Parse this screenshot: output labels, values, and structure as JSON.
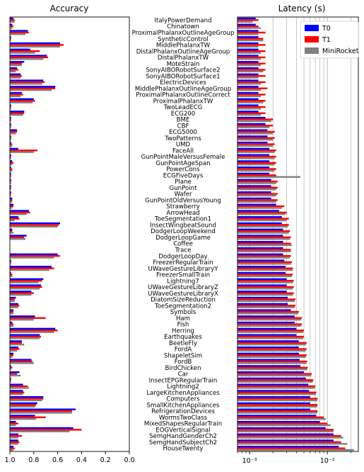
{
  "chart_data": [
    {
      "type": "bar",
      "orientation": "horizontal",
      "title": "Accuracy",
      "xaxis_inverted": true,
      "xlim": [
        1.0,
        0.0
      ],
      "xticks": [
        1.0,
        0.8,
        0.6,
        0.4,
        0.2,
        0.0
      ],
      "xtick_labels": [
        "1.0",
        "0.8",
        "0.6",
        "0.4",
        "0.2",
        "0.0"
      ],
      "categories": [
        "ItalyPowerDemand",
        "Chinatown",
        "ProximalPhalanxOutlineAgeGroup",
        "SyntheticControl",
        "MiddlePhalanxTW",
        "DistalPhalanxOutlineAgeGroup",
        "DistalPhalanxTW",
        "MoteStrain",
        "SonyAIBORobotSurface2",
        "SonyAIBORobotSurface1",
        "ElectricDevices",
        "MiddlePhalanxOutlineAgeGroup",
        "ProximalPhalanxOutlineCorrect",
        "ProximalPhalanxTW",
        "TwoLeadECG",
        "ECG200",
        "BME",
        "CBF",
        "ECG5000",
        "TwoPatterns",
        "UMD",
        "FaceAll",
        "GunPointMaleVersusFemale",
        "GunPointAgeSpan",
        "PowerCons",
        "ECGFiveDays",
        "Plane",
        "GunPoint",
        "Wafer",
        "GunPointOldVersusYoung",
        "Strawberry",
        "ArrowHead",
        "ToeSegmentation1",
        "InsectWingbeatSound",
        "DodgerLoopWeekend",
        "DodgerLoopGame",
        "Coffee",
        "Trace",
        "DodgerLoopDay",
        "FreezerRegularTrain",
        "UWaveGestureLibraryY",
        "FreezerSmallTrain",
        "Lightning7",
        "UWaveGestureLibraryZ",
        "UWaveGestureLibraryX",
        "DiatomSizeReduction",
        "ToeSegmentation2",
        "Symbols",
        "Ham",
        "Fish",
        "Herring",
        "Earthquakes",
        "BeetleFly",
        "FordA",
        "ShapeletSim",
        "FordB",
        "BirdChicken",
        "Car",
        "InsectEPGRegularTrain",
        "Lightning2",
        "LargeKitchenAppliances",
        "Computers",
        "SmallKitchenAppliances",
        "RefrigerationDevices",
        "WormsTwoClass",
        "MixedShapesRegularTrain",
        "EOGVerticalSignal",
        "SemgHandGenderCh2",
        "SemgHandSubjectCh2",
        "HouseTwenty"
      ],
      "series": [
        {
          "name": "T0",
          "color": "#0000ff",
          "values": [
            0.97,
            0.98,
            0.85,
            0.99,
            0.58,
            0.83,
            0.69,
            0.88,
            0.94,
            0.91,
            0.72,
            0.62,
            0.9,
            0.8,
            0.99,
            0.88,
            0.99,
            0.99,
            0.94,
            0.99,
            0.99,
            0.93,
            0.99,
            0.98,
            0.99,
            0.99,
            0.99,
            0.99,
            0.99,
            0.98,
            0.97,
            0.84,
            0.93,
            0.58,
            0.98,
            0.86,
            1.0,
            1.0,
            0.6,
            0.99,
            0.65,
            0.99,
            0.72,
            0.74,
            0.82,
            0.95,
            0.93,
            0.97,
            0.79,
            0.98,
            0.62,
            0.75,
            0.9,
            0.93,
            0.97,
            0.82,
            0.99,
            0.92,
            0.99,
            0.89,
            0.89,
            0.72,
            0.77,
            0.45,
            0.79,
            0.95,
            0.47,
            0.93,
            0.93,
            0.97
          ]
        },
        {
          "name": "T1",
          "color": "#ff0000",
          "values": [
            0.96,
            0.97,
            0.84,
            0.99,
            0.55,
            0.75,
            0.68,
            0.9,
            0.93,
            0.9,
            0.71,
            0.62,
            0.89,
            0.79,
            0.99,
            0.88,
            0.99,
            0.99,
            0.94,
            0.99,
            0.98,
            0.77,
            0.99,
            0.97,
            0.98,
            0.99,
            0.99,
            0.99,
            0.99,
            0.98,
            0.97,
            0.83,
            0.92,
            0.59,
            0.98,
            0.88,
            1.0,
            1.0,
            0.58,
            0.99,
            0.63,
            0.98,
            0.73,
            0.73,
            0.8,
            0.96,
            0.92,
            0.97,
            0.7,
            0.97,
            0.6,
            0.74,
            0.9,
            0.92,
            0.97,
            0.81,
            0.98,
            0.94,
            0.99,
            0.85,
            0.88,
            0.72,
            0.78,
            0.48,
            0.7,
            0.93,
            0.4,
            0.9,
            0.92,
            0.96
          ]
        },
        {
          "name": "MiniRocket",
          "color": "#808080",
          "values": [
            0.96,
            0.98,
            0.87,
            0.99,
            0.58,
            0.79,
            0.72,
            0.9,
            0.95,
            0.91,
            0.73,
            0.65,
            0.91,
            0.81,
            0.99,
            0.89,
            0.99,
            0.99,
            0.95,
            0.99,
            0.98,
            0.8,
            0.99,
            0.98,
            0.98,
            0.99,
            0.99,
            0.99,
            0.99,
            0.98,
            0.98,
            0.86,
            0.96,
            0.6,
            0.97,
            0.87,
            1.0,
            1.0,
            0.63,
            0.99,
            0.67,
            0.98,
            0.76,
            0.75,
            0.82,
            0.96,
            0.93,
            0.97,
            0.8,
            0.97,
            0.63,
            0.75,
            0.88,
            0.94,
            0.98,
            0.8,
            0.99,
            0.91,
            0.99,
            0.84,
            0.89,
            0.73,
            0.79,
            0.48,
            0.78,
            0.95,
            0.5,
            0.93,
            0.93,
            0.97
          ]
        }
      ]
    },
    {
      "type": "bar",
      "orientation": "horizontal",
      "title": "Latency (s)",
      "xscale": "log",
      "xlim": [
        0.0007,
        0.025
      ],
      "xticks_major": [
        0.001,
        0.01
      ],
      "xtick_labels": [
        "10⁻³",
        "10⁻²"
      ],
      "grid": "vertical",
      "legend_position": "top-right",
      "categories": [
        "ItalyPowerDemand",
        "Chinatown",
        "ProximalPhalanxOutlineAgeGroup",
        "SyntheticControl",
        "MiddlePhalanxTW",
        "DistalPhalanxOutlineAgeGroup",
        "DistalPhalanxTW",
        "MoteStrain",
        "SonyAIBORobotSurface2",
        "SonyAIBORobotSurface1",
        "ElectricDevices",
        "MiddlePhalanxOutlineAgeGroup",
        "ProximalPhalanxOutlineCorrect",
        "ProximalPhalanxTW",
        "TwoLeadECG",
        "ECG200",
        "BME",
        "CBF",
        "ECG5000",
        "TwoPatterns",
        "UMD",
        "FaceAll",
        "GunPointMaleVersusFemale",
        "GunPointAgeSpan",
        "PowerCons",
        "ECGFiveDays",
        "Plane",
        "GunPoint",
        "Wafer",
        "GunPointOldVersusYoung",
        "Strawberry",
        "ArrowHead",
        "ToeSegmentation1",
        "InsectWingbeatSound",
        "DodgerLoopWeekend",
        "DodgerLoopGame",
        "Coffee",
        "Trace",
        "DodgerLoopDay",
        "FreezerRegularTrain",
        "UWaveGestureLibraryY",
        "FreezerSmallTrain",
        "Lightning7",
        "UWaveGestureLibraryZ",
        "UWaveGestureLibraryX",
        "DiatomSizeReduction",
        "ToeSegmentation2",
        "Symbols",
        "Ham",
        "Fish",
        "Herring",
        "Earthquakes",
        "BeetleFly",
        "FordA",
        "ShapeletSim",
        "FordB",
        "BirdChicken",
        "Car",
        "InsectEPGRegularTrain",
        "Lightning2",
        "LargeKitchenAppliances",
        "Computers",
        "SmallKitchenAppliances",
        "RefrigerationDevices",
        "WormsTwoClass",
        "MixedShapesRegularTrain",
        "EOGVerticalSignal",
        "SemgHandGenderCh2",
        "SemgHandSubjectCh2",
        "HouseTwenty"
      ],
      "series": [
        {
          "name": "T0",
          "color": "#0000ff",
          "values": [
            0.0012,
            0.0012,
            0.0013,
            0.0013,
            0.0013,
            0.0013,
            0.0013,
            0.0013,
            0.0013,
            0.0013,
            0.0013,
            0.0013,
            0.0013,
            0.0013,
            0.0013,
            0.0013,
            0.0016,
            0.0016,
            0.0017,
            0.0017,
            0.0017,
            0.0018,
            0.0018,
            0.0018,
            0.0018,
            0.0018,
            0.0019,
            0.0019,
            0.0019,
            0.0019,
            0.0022,
            0.0024,
            0.0026,
            0.0026,
            0.0027,
            0.0027,
            0.0027,
            0.0027,
            0.0027,
            0.0028,
            0.0029,
            0.0029,
            0.003,
            0.003,
            0.003,
            0.0031,
            0.0031,
            0.0034,
            0.0038,
            0.0038,
            0.004,
            0.004,
            0.0043,
            0.0043,
            0.0043,
            0.0044,
            0.0045,
            0.005,
            0.0053,
            0.0057,
            0.0058,
            0.006,
            0.006,
            0.006,
            0.0072,
            0.008,
            0.0095,
            0.012,
            0.012,
            0.014
          ]
        },
        {
          "name": "T1",
          "color": "#ff0000",
          "values": [
            0.0013,
            0.0013,
            0.0016,
            0.0015,
            0.0016,
            0.0016,
            0.0016,
            0.0016,
            0.0016,
            0.0016,
            0.0016,
            0.0017,
            0.0016,
            0.0016,
            0.0016,
            0.0016,
            0.002,
            0.002,
            0.0021,
            0.0021,
            0.0021,
            0.0022,
            0.0022,
            0.0022,
            0.0022,
            0.0022,
            0.0023,
            0.0023,
            0.0023,
            0.0023,
            0.0028,
            0.003,
            0.0032,
            0.0032,
            0.0033,
            0.0034,
            0.0034,
            0.0034,
            0.0034,
            0.0035,
            0.0036,
            0.0036,
            0.0037,
            0.0037,
            0.0037,
            0.0039,
            0.0039,
            0.0043,
            0.0047,
            0.0047,
            0.005,
            0.005,
            0.0054,
            0.0054,
            0.0054,
            0.0055,
            0.0056,
            0.0063,
            0.0066,
            0.007,
            0.0072,
            0.0075,
            0.0075,
            0.0075,
            0.009,
            0.01,
            0.012,
            0.015,
            0.015,
            0.017
          ]
        },
        {
          "name": "MiniRocket",
          "color": "#808080",
          "values": [
            0.0011,
            0.0014,
            0.0013,
            0.0015,
            0.0013,
            0.0014,
            0.0014,
            0.0014,
            0.0015,
            0.0013,
            0.0014,
            0.0014,
            0.0014,
            0.0015,
            0.0014,
            0.0014,
            0.0019,
            0.0018,
            0.002,
            0.002,
            0.002,
            0.0021,
            0.0021,
            0.0021,
            0.0021,
            0.0045,
            0.0022,
            0.0022,
            0.0022,
            0.0022,
            0.0026,
            0.0029,
            0.003,
            0.0031,
            0.0032,
            0.0033,
            0.0035,
            0.0034,
            0.0033,
            0.0034,
            0.0036,
            0.0035,
            0.0036,
            0.0036,
            0.0036,
            0.0038,
            0.0038,
            0.0042,
            0.0046,
            0.0046,
            0.0049,
            0.0049,
            0.0053,
            0.0053,
            0.0053,
            0.0054,
            0.0055,
            0.0062,
            0.0065,
            0.0069,
            0.0071,
            0.0074,
            0.0074,
            0.0074,
            0.0095,
            0.011,
            0.012,
            0.016,
            0.018,
            0.022
          ]
        }
      ]
    }
  ]
}
